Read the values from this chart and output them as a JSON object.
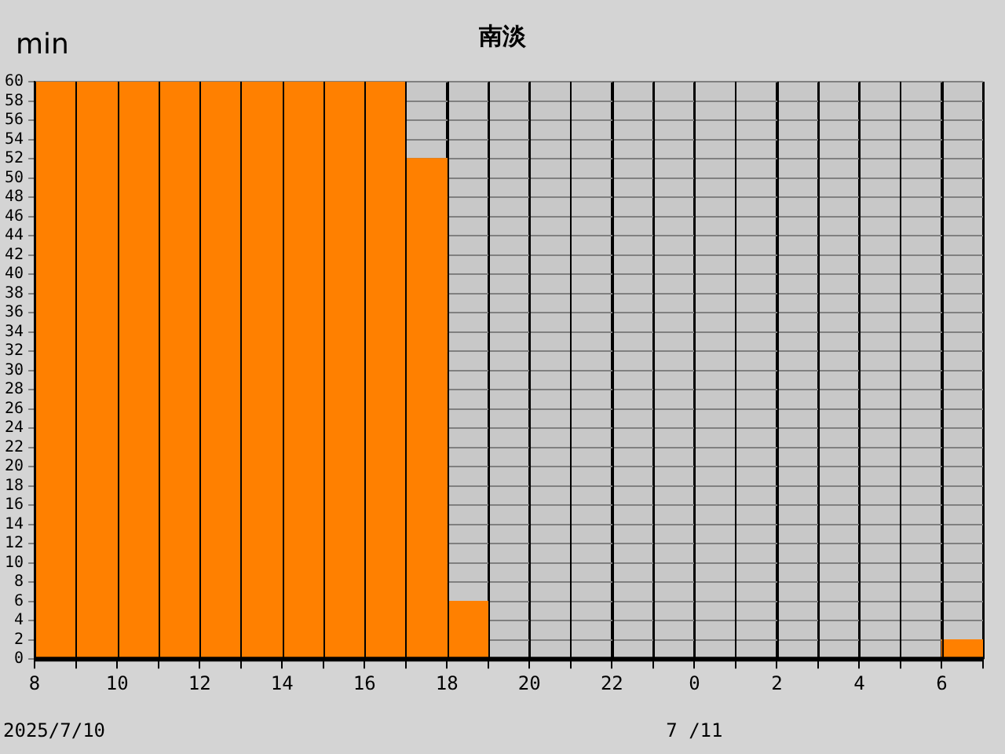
{
  "chart_data": {
    "type": "histogram",
    "title": "南淡",
    "ylabel": "min",
    "bins": [
      "2025-07-10T08:00",
      "2025-07-10T09:00",
      "2025-07-10T10:00",
      "2025-07-10T11:00",
      "2025-07-10T12:00",
      "2025-07-10T13:00",
      "2025-07-10T14:00",
      "2025-07-10T15:00",
      "2025-07-10T16:00",
      "2025-07-10T17:00",
      "2025-07-10T18:00",
      "2025-07-10T19:00",
      "2025-07-10T20:00",
      "2025-07-10T21:00",
      "2025-07-10T22:00",
      "2025-07-10T23:00",
      "2025-07-11T00:00",
      "2025-07-11T01:00",
      "2025-07-11T02:00",
      "2025-07-11T03:00",
      "2025-07-11T04:00",
      "2025-07-11T05:00",
      "2025-07-11T06:00",
      "2025-07-11T07:00"
    ],
    "values": [
      60,
      60,
      60,
      60,
      60,
      60,
      60,
      60,
      60,
      52,
      6,
      0,
      0,
      0,
      0,
      0,
      0,
      0,
      0,
      0,
      0,
      0,
      2
    ],
    "color": "#ff8000",
    "xlim": [
      "2025-07-10T08:00",
      "2025-07-11T07:00"
    ],
    "xticks": [
      {
        "value": "2025-07-10T08:00",
        "label": "8"
      },
      {
        "value": "2025-07-10T09:00",
        "label": null
      },
      {
        "value": "2025-07-10T10:00",
        "label": "10"
      },
      {
        "value": "2025-07-10T11:00",
        "label": null
      },
      {
        "value": "2025-07-10T12:00",
        "label": "12"
      },
      {
        "value": "2025-07-10T13:00",
        "label": null
      },
      {
        "value": "2025-07-10T14:00",
        "label": "14"
      },
      {
        "value": "2025-07-10T15:00",
        "label": null
      },
      {
        "value": "2025-07-10T16:00",
        "label": "16"
      },
      {
        "value": "2025-07-10T17:00",
        "label": null
      },
      {
        "value": "2025-07-10T18:00",
        "label": "18"
      },
      {
        "value": "2025-07-10T19:00",
        "label": null
      },
      {
        "value": "2025-07-10T20:00",
        "label": "20"
      },
      {
        "value": "2025-07-10T21:00",
        "label": null
      },
      {
        "value": "2025-07-10T22:00",
        "label": "22"
      },
      {
        "value": "2025-07-10T23:00",
        "label": null
      },
      {
        "value": "2025-07-11T00:00",
        "label": "0"
      },
      {
        "value": "2025-07-11T01:00",
        "label": null
      },
      {
        "value": "2025-07-11T02:00",
        "label": "2"
      },
      {
        "value": "2025-07-11T03:00",
        "label": null
      },
      {
        "value": "2025-07-11T04:00",
        "label": "4"
      },
      {
        "value": "2025-07-11T05:00",
        "label": null
      },
      {
        "value": "2025-07-11T06:00",
        "label": "6"
      },
      {
        "value": "2025-07-11T07:00",
        "label": null
      }
    ],
    "ylim": [
      0,
      60
    ],
    "yticks": [
      0,
      2,
      4,
      6,
      8,
      10,
      12,
      14,
      16,
      18,
      20,
      22,
      24,
      26,
      28,
      30,
      32,
      34,
      36,
      38,
      40,
      42,
      44,
      46,
      48,
      50,
      52,
      54,
      56,
      58,
      60
    ],
    "grid": true,
    "annotations": [
      "2025/7/10",
      "7 /11"
    ]
  }
}
